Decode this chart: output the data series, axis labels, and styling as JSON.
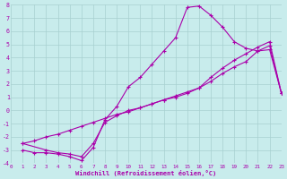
{
  "xlabel": "Windchill (Refroidissement éolien,°C)",
  "bg_color": "#c8ecec",
  "grid_color": "#a8d0d0",
  "line_color": "#aa00aa",
  "xlim": [
    0,
    23
  ],
  "ylim": [
    -4,
    8
  ],
  "xticks": [
    0,
    1,
    2,
    3,
    4,
    5,
    6,
    7,
    8,
    9,
    10,
    11,
    12,
    13,
    14,
    15,
    16,
    17,
    18,
    19,
    20,
    21,
    22,
    23
  ],
  "yticks": [
    -4,
    -3,
    -2,
    -1,
    0,
    1,
    2,
    3,
    4,
    5,
    6,
    7,
    8
  ],
  "line1_x": [
    1,
    2,
    3,
    4,
    5,
    6,
    7,
    8,
    9,
    10,
    11,
    12,
    13,
    14,
    15,
    16,
    17,
    18,
    19,
    20,
    21,
    22,
    23
  ],
  "line1_y": [
    -3.0,
    -3.2,
    -3.2,
    -3.3,
    -3.5,
    -3.8,
    -2.8,
    -0.7,
    0.3,
    1.8,
    2.5,
    3.5,
    4.5,
    5.5,
    7.8,
    7.9,
    7.2,
    6.3,
    5.2,
    4.7,
    4.5,
    4.6,
    1.3
  ],
  "line2_x": [
    1,
    3,
    4,
    5,
    6,
    7,
    8,
    9,
    10,
    11,
    12,
    13,
    14,
    15,
    16,
    17,
    18,
    19,
    20,
    21,
    22,
    23
  ],
  "line2_y": [
    -2.5,
    -3.0,
    -3.2,
    -3.3,
    -3.5,
    -2.5,
    -0.9,
    -0.4,
    0.0,
    0.2,
    0.5,
    0.8,
    1.0,
    1.3,
    1.7,
    2.2,
    2.8,
    3.3,
    3.7,
    4.5,
    4.9,
    1.3
  ],
  "line3_x": [
    1,
    2,
    3,
    4,
    5,
    6,
    7,
    8,
    9,
    10,
    11,
    12,
    13,
    14,
    15,
    16,
    17,
    18,
    19,
    20,
    21,
    22,
    23
  ],
  "line3_y": [
    -2.5,
    -2.3,
    -2.0,
    -1.8,
    -1.5,
    -1.2,
    -0.9,
    -0.6,
    -0.3,
    -0.1,
    0.2,
    0.5,
    0.8,
    1.1,
    1.4,
    1.7,
    2.5,
    3.2,
    3.8,
    4.3,
    4.8,
    5.2,
    1.3
  ]
}
